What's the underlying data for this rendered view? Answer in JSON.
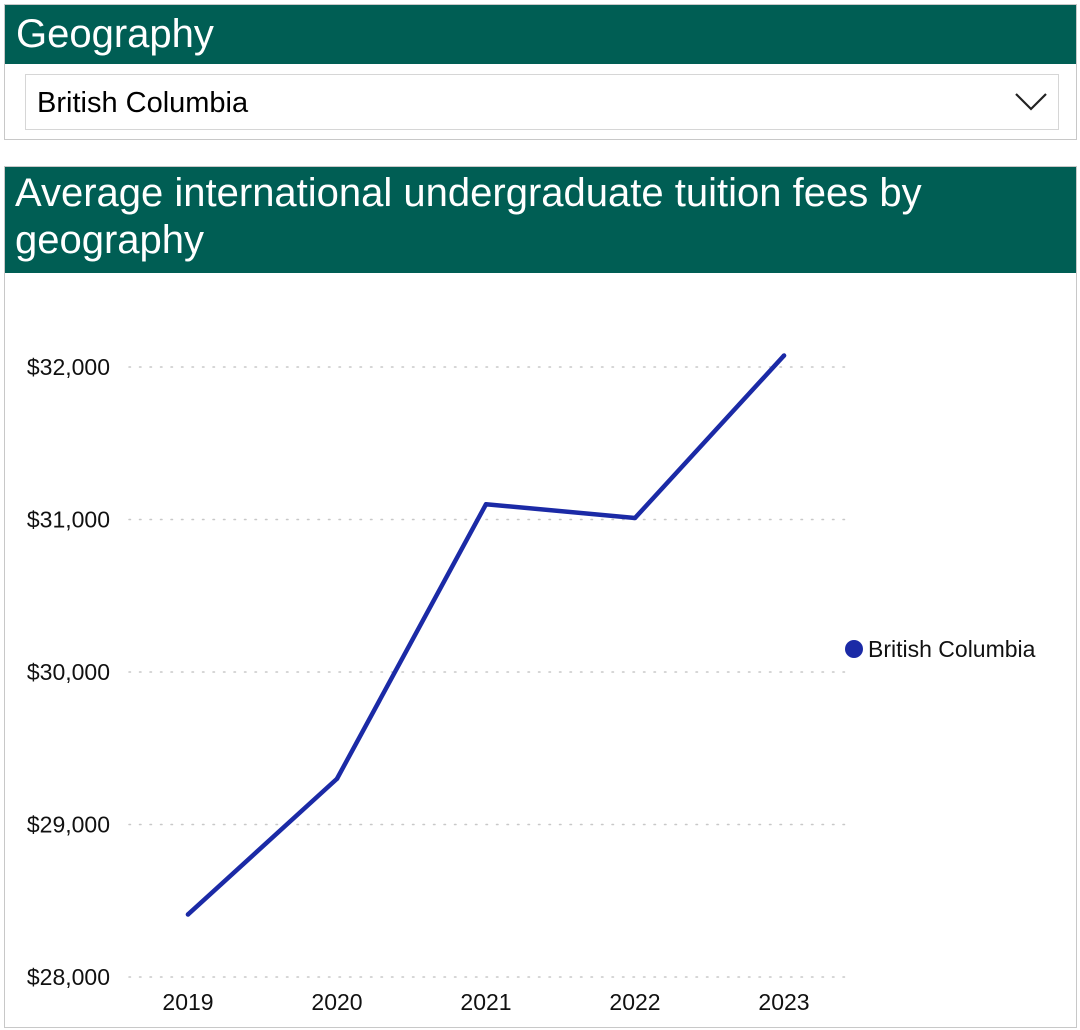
{
  "slicer": {
    "title": "Geography",
    "selected": "British Columbia"
  },
  "icons": {
    "dropdown": "chevron-down-icon",
    "legend_marker": "circle-marker-icon"
  },
  "colors": {
    "header_bg": "#005e54",
    "series_line": "#1b2aa6",
    "gridline": "#c8c8c8"
  },
  "chart_data": {
    "type": "line",
    "title": "Average international undergraduate tuition fees by geography",
    "xlabel": "",
    "ylabel": "",
    "categories": [
      "2019",
      "2020",
      "2021",
      "2022",
      "2023"
    ],
    "series": [
      {
        "name": "British Columbia",
        "values": [
          28410,
          29300,
          31100,
          31010,
          32075
        ]
      }
    ],
    "ylim": [
      28000,
      32000
    ],
    "yticks": [
      28000,
      29000,
      30000,
      31000,
      32000
    ],
    "ytick_labels": [
      "$28,000",
      "$29,000",
      "$30,000",
      "$31,000",
      "$32,000"
    ],
    "grid": true,
    "legend_position": "right"
  }
}
